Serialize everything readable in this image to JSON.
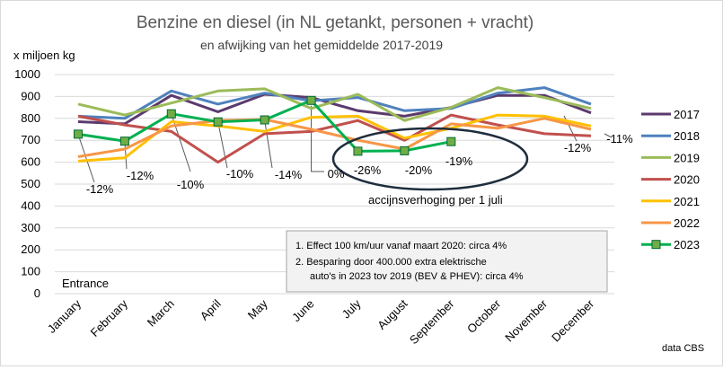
{
  "chart_data": {
    "type": "line",
    "title": "Benzine en diesel (in NL getankt, personen + vracht)",
    "subtitle": "en afwijking van het gemiddelde 2017-2019",
    "ylabel": "x miljoen kg",
    "ylim": [
      0,
      1000
    ],
    "yticks": [
      0,
      100,
      200,
      300,
      400,
      500,
      600,
      700,
      800,
      900,
      1000
    ],
    "categories": [
      "January",
      "February",
      "March",
      "April",
      "May",
      "June",
      "July",
      "August",
      "September",
      "October",
      "November",
      "December"
    ],
    "grid": true,
    "legend": "right",
    "series": [
      {
        "name": "2017",
        "color": "#5b3a6e",
        "values": [
          785,
          775,
          905,
          830,
          910,
          895,
          835,
          810,
          850,
          905,
          905,
          825
        ]
      },
      {
        "name": "2018",
        "color": "#4f81bd",
        "values": [
          810,
          800,
          925,
          865,
          915,
          880,
          895,
          835,
          845,
          915,
          940,
          865
        ]
      },
      {
        "name": "2019",
        "color": "#9bbb59",
        "values": [
          865,
          815,
          870,
          925,
          935,
          845,
          910,
          790,
          850,
          940,
          895,
          845
        ]
      },
      {
        "name": "2020",
        "color": "#c0504d",
        "values": [
          810,
          770,
          740,
          600,
          730,
          740,
          790,
          700,
          815,
          770,
          730,
          720
        ]
      },
      {
        "name": "2021",
        "color": "#ffc000",
        "values": [
          605,
          620,
          785,
          765,
          740,
          805,
          810,
          710,
          755,
          815,
          810,
          765
        ]
      },
      {
        "name": "2022",
        "color": "#f79646",
        "values": [
          625,
          660,
          765,
          790,
          795,
          750,
          700,
          660,
          775,
          755,
          800,
          750
        ]
      },
      {
        "name": "2023",
        "color": "#00b050",
        "marker": "square",
        "values": [
          728,
          696,
          821,
          784,
          793,
          882,
          650,
          652,
          694,
          null,
          null,
          null
        ]
      }
    ],
    "annotations": [
      "-12%",
      "-12%",
      "-10%",
      "-10%",
      "-14%",
      "0%",
      "-26%",
      "-20%",
      "-19%",
      "-12%",
      "-11%"
    ],
    "callout": "accijnsverhoging per 1 juli",
    "notes": [
      "1. Effect 100 km/uur vanaf maart 2020: circa 4%",
      "2. Besparing door 400.000 extra elektrische",
      "auto's in 2023 tov 2019 (BEV & PHEV): circa 4%"
    ],
    "corner_label": "Entrance",
    "source": "data CBS"
  }
}
